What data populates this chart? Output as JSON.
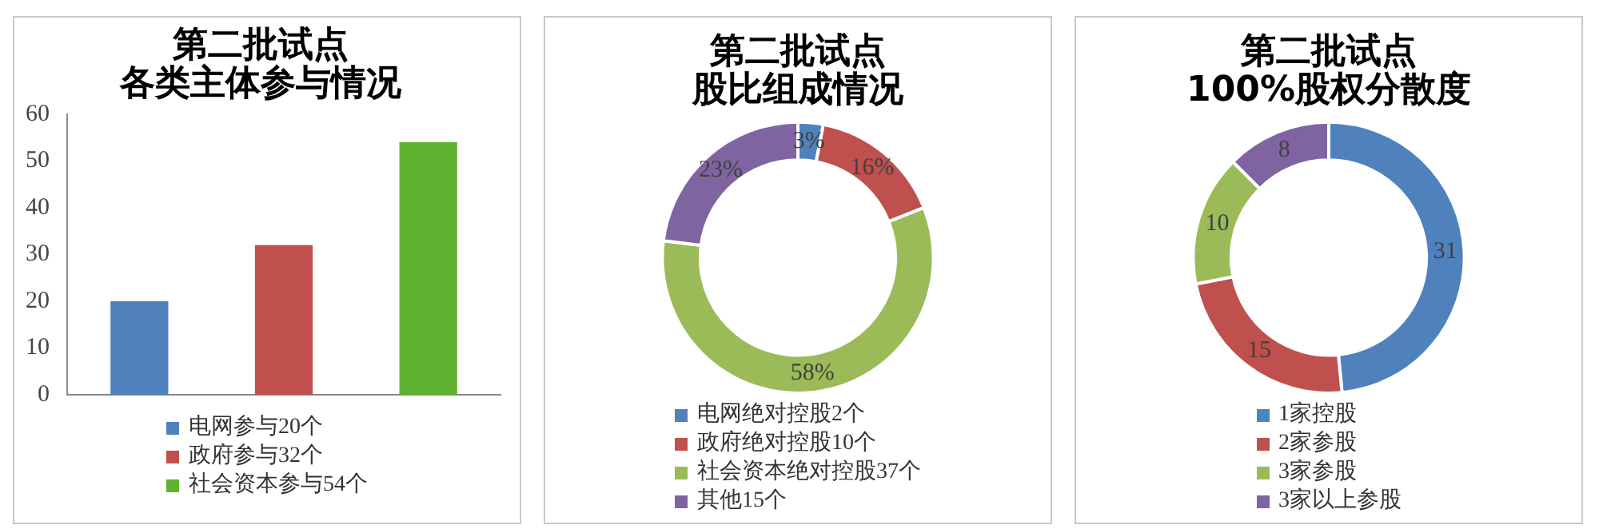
{
  "chart_data": [
    {
      "type": "bar",
      "title": "第二批试点",
      "subtitle": "各类主体参与情况",
      "categories": [
        null,
        null,
        null
      ],
      "series": [
        {
          "name": "电网参与20个",
          "color": "#4f81bd",
          "values": [
            20,
            null,
            null
          ]
        },
        {
          "name": "政府参与32个",
          "color": "#c0504d",
          "values": [
            null,
            32,
            null
          ]
        },
        {
          "name": "社会资本参与54个",
          "color": "#5fb22f",
          "values": [
            null,
            null,
            54
          ]
        }
      ],
      "ylim": [
        0,
        60
      ],
      "yticks": [
        0,
        10,
        20,
        30,
        40,
        50,
        60
      ],
      "grid": false,
      "legend": "bottom"
    },
    {
      "type": "donut",
      "title": "第二批试点",
      "subtitle": "股比组成情况",
      "categories": [
        "电网绝对控股2个",
        "政府绝对控股10个",
        "社会资本绝对控股37个",
        "其他15个"
      ],
      "values": [
        3,
        16,
        58,
        23
      ],
      "colors": [
        "#4f81bd",
        "#c0504d",
        "#9bbb59",
        "#8064a2"
      ],
      "value_labels": [
        "3%",
        "16%",
        "58%",
        "23%"
      ],
      "legend": "bottom"
    },
    {
      "type": "donut",
      "title": "第二批试点",
      "subtitle": "100%股权分散度",
      "categories": [
        "1家控股",
        "2家参股",
        "3家参股",
        "3家以上参股"
      ],
      "values": [
        31,
        15,
        10,
        8
      ],
      "colors": [
        "#4f81bd",
        "#c0504d",
        "#9bbb59",
        "#8064a2"
      ],
      "data_labels": true,
      "legend": "bottom"
    }
  ]
}
